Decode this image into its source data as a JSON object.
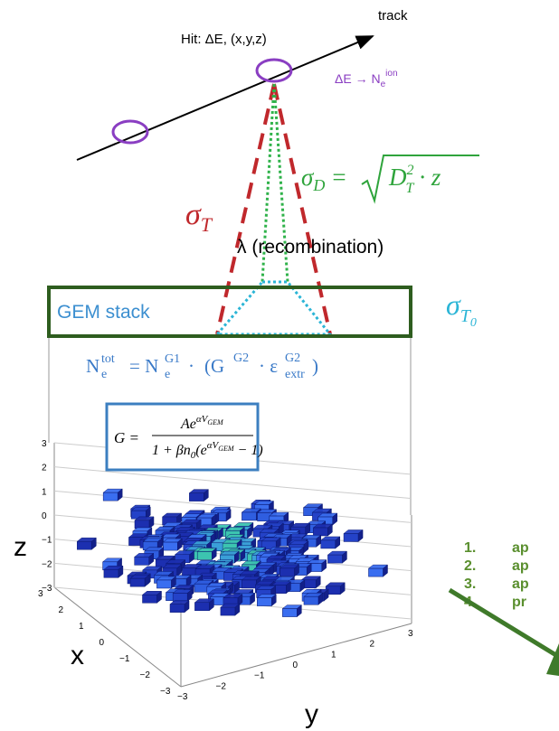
{
  "track_label": "track",
  "hit_label": "Hit: ΔE, (x,y,z)",
  "ionization": {
    "text": "ΔE → N",
    "sub": "e",
    "sup": "ion"
  },
  "sigma_d": {
    "symbol": "σ",
    "sub": "D",
    "equals": "=",
    "base": "D",
    "sup": "2",
    "sub2": "T",
    "rest": "· z"
  },
  "sigma_t": {
    "symbol": "σ",
    "sub": "T"
  },
  "recombination": "λ (recombination)",
  "gem_stack": "GEM stack",
  "sigma_t0": {
    "symbol": "σ",
    "sub": "T",
    "subsub": "0"
  },
  "n_formula": {
    "n1": "N",
    "n1_sup": "tot",
    "n1_sub": "e",
    "eq": "= N",
    "n2_sup": "G1",
    "n2_sub": "e",
    "dot1": "·",
    "open": "(G",
    "g_sup": "G2",
    "dot2": "· ε",
    "eps_sup": "G2",
    "eps_sub": "extr",
    "close": ")"
  },
  "g_formula": {
    "lhs": "G =",
    "num": "Ae",
    "num_sup": "αV",
    "num_sub": "GEM",
    "den1": "1 + βn",
    "den_sub": "0",
    "den2": "(e",
    "den_sup": "αV",
    "den_sub2": "GEM",
    "den3": " − 1)"
  },
  "plot": {
    "z_label": "z",
    "x_label": "x",
    "y_label": "y",
    "z_ticks": [
      "3",
      "2",
      "1",
      "0",
      "−1",
      "−2",
      "−3"
    ],
    "x_ticks": [
      "3",
      "2",
      "1",
      "0",
      "−1",
      "−2",
      "−3"
    ],
    "y_ticks": [
      "−3",
      "−2",
      "−1",
      "0",
      "1",
      "2",
      "3"
    ]
  },
  "steps": [
    {
      "num": "1.",
      "text": "ap"
    },
    {
      "num": "2.",
      "text": "ap"
    },
    {
      "num": "3.",
      "text": "ap"
    },
    {
      "num": "4.",
      "text": "pr"
    }
  ]
}
